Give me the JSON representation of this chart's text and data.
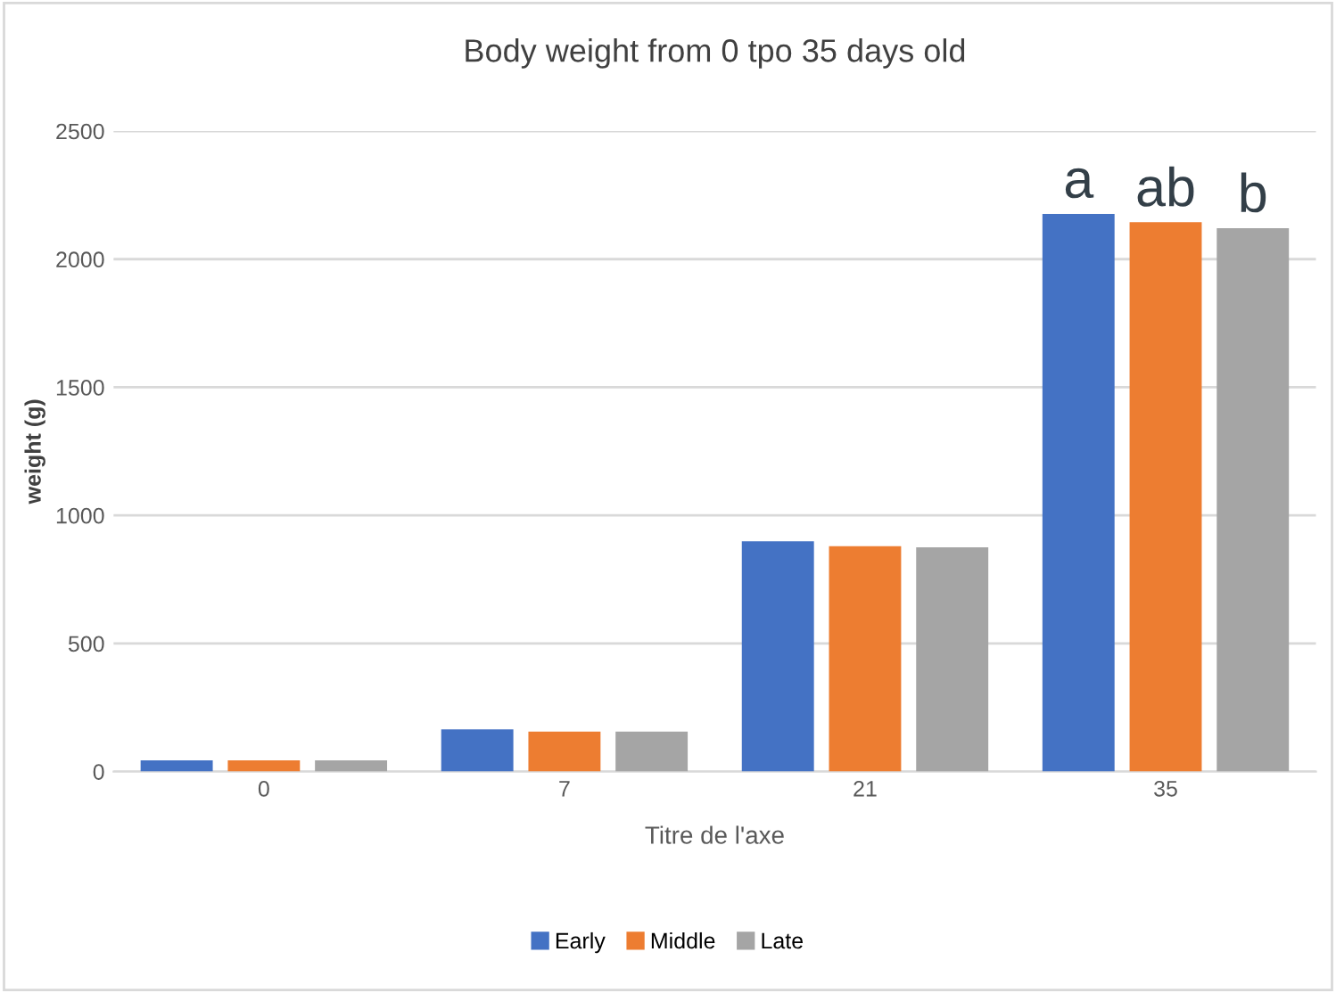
{
  "chart_data": {
    "type": "bar",
    "title": "Body weight from 0 tpo 35 days old",
    "xlabel": "Titre de l'axe",
    "ylabel": "weight (g)",
    "categories": [
      "0",
      "7",
      "21",
      "35"
    ],
    "series": [
      {
        "name": "Early",
        "color": "#4472c4",
        "values": [
          44,
          165,
          899,
          2177
        ]
      },
      {
        "name": "Middle",
        "color": "#ed7d31",
        "values": [
          44,
          156,
          880,
          2144
        ]
      },
      {
        "name": "Late",
        "color": "#a5a5a5",
        "values": [
          44,
          156,
          875,
          2121
        ]
      }
    ],
    "ylim": [
      0,
      2500
    ],
    "yticks": [
      0,
      500,
      1000,
      1500,
      2000,
      2500
    ],
    "grid": "y",
    "legend": "bottom",
    "annotations": [
      {
        "text": "a",
        "x": "35",
        "y": 2177
      },
      {
        "text": "ab",
        "x": "35",
        "y": 2144
      },
      {
        "text": "b",
        "x": "35",
        "y": 2121
      }
    ]
  }
}
